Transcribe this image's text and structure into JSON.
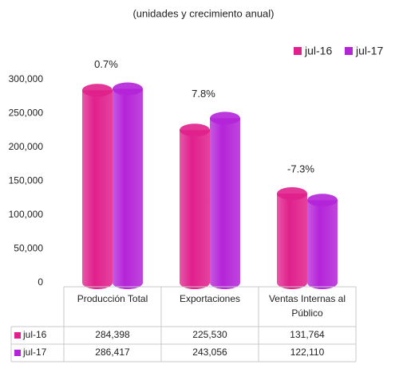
{
  "chart_data": {
    "type": "bar",
    "title": "(unidades y crecimiento anual)",
    "categories": [
      "Producción Total",
      "Exportaciones",
      "Ventas Internas al Público"
    ],
    "annotations": [
      "0.7%",
      "7.8%",
      "-7.3%"
    ],
    "series": [
      {
        "name": "jul-16",
        "color": "#e0208c",
        "values": [
          284398,
          225530,
          131764
        ],
        "value_labels": [
          "284,398",
          "225,530",
          "131,764"
        ]
      },
      {
        "name": "jul-17",
        "color": "#b424d8",
        "values": [
          286417,
          243056,
          122110
        ],
        "value_labels": [
          "286,417",
          "243,056",
          "122,110"
        ]
      }
    ],
    "ylim": [
      0,
      300000
    ],
    "yticks": [
      0,
      {
        "value": 50000,
        "label": "50,000"
      },
      {
        "value": 100000,
        "label": "100,000"
      },
      {
        "value": 150000,
        "label": "150,000"
      },
      {
        "value": 200000,
        "label": "200,000"
      },
      {
        "value": 250000,
        "label": "250,000"
      },
      {
        "value": 300000,
        "label": "300,000"
      }
    ],
    "legend": "top-right"
  }
}
